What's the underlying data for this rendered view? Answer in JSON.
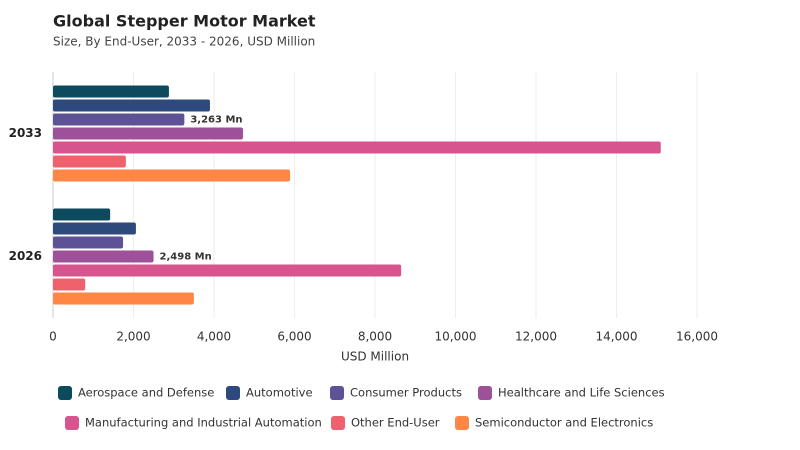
{
  "chart_data": {
    "type": "bar",
    "orientation": "horizontal",
    "title": "Global Stepper Motor Market",
    "subtitle": "Size, By End-User, 2033 - 2026, USD Million",
    "x_label": "USD Million",
    "categories": [
      "2033",
      "2026"
    ],
    "xlim": [
      0,
      16000
    ],
    "xticks": [
      0,
      {
        "value": 2000,
        "label": "2,000"
      },
      {
        "value": 4000,
        "label": "4,000"
      },
      {
        "value": 6000,
        "label": "6,000"
      },
      {
        "value": 8000,
        "label": "8,000"
      },
      {
        "value": 10000,
        "label": "10,000"
      },
      {
        "value": 12000,
        "label": "12,000"
      },
      {
        "value": 14000,
        "label": "14,000"
      },
      {
        "value": 16000,
        "label": "16,000"
      }
    ],
    "grid": true,
    "series": [
      {
        "name": "Aerospace and Defense",
        "color": "#0d4a5e",
        "values": [
          2880,
          1420
        ]
      },
      {
        "name": "Automotive",
        "color": "#2e4a7d",
        "values": [
          3900,
          2060
        ]
      },
      {
        "name": "Consumer Products",
        "color": "#5e5296",
        "values": [
          3263,
          1740
        ],
        "value_labels": [
          "3,263 Mn",
          null
        ]
      },
      {
        "name": "Healthcare and Life Sciences",
        "color": "#9c5199",
        "values": [
          4720,
          2498
        ],
        "value_labels": [
          null,
          "2,498 Mn"
        ]
      },
      {
        "name": "Manufacturing and Industrial Automation",
        "color": "#d6558e",
        "values": [
          15100,
          8650
        ]
      },
      {
        "name": "Other End-User",
        "color": "#f0616e",
        "values": [
          1810,
          800
        ]
      },
      {
        "name": "Semiconductor and Electronics",
        "color": "#ff8645",
        "values": [
          5890,
          3500
        ]
      }
    ]
  }
}
